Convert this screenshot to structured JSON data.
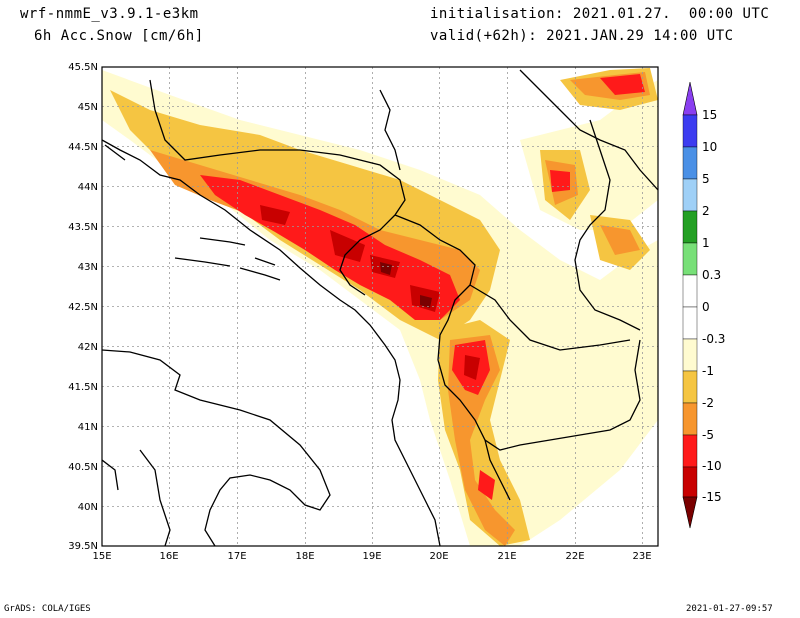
{
  "header": {
    "model": "wrf-nmmE_v3.9.1-e3km",
    "field": "6h Acc.Snow [cm/6h]",
    "init": "initialisation: 2021.01.27.  00:00 UTC",
    "valid": "valid(+62h): 2021.JAN.29 14:00 UTC"
  },
  "axes": {
    "lat_labels": [
      "45.5N",
      "45N",
      "44.5N",
      "44N",
      "43.5N",
      "43N",
      "42.5N",
      "42N",
      "41.5N",
      "41N",
      "40.5N",
      "40N",
      "39.5N"
    ],
    "lon_labels": [
      "15E",
      "16E",
      "17E",
      "18E",
      "19E",
      "20E",
      "21E",
      "22E",
      "23E"
    ]
  },
  "colorbar": {
    "labels": [
      "15",
      "10",
      "5",
      "2",
      "1",
      "0.3",
      "0",
      "-0.3",
      "-1",
      "-2",
      "-5",
      "-10",
      "-15"
    ],
    "colors": [
      "#8a3ff0",
      "#3c3cf0",
      "#4a90e6",
      "#9fd0f7",
      "#24a024",
      "#78e078",
      "#ffffff",
      "#fffbd0",
      "#f5c542",
      "#f7962e",
      "#ff1a1a",
      "#c80000",
      "#7a0000"
    ]
  },
  "footer": {
    "left": "GrADS: COLA/IGES",
    "right": "2021-01-27-09:57"
  }
}
